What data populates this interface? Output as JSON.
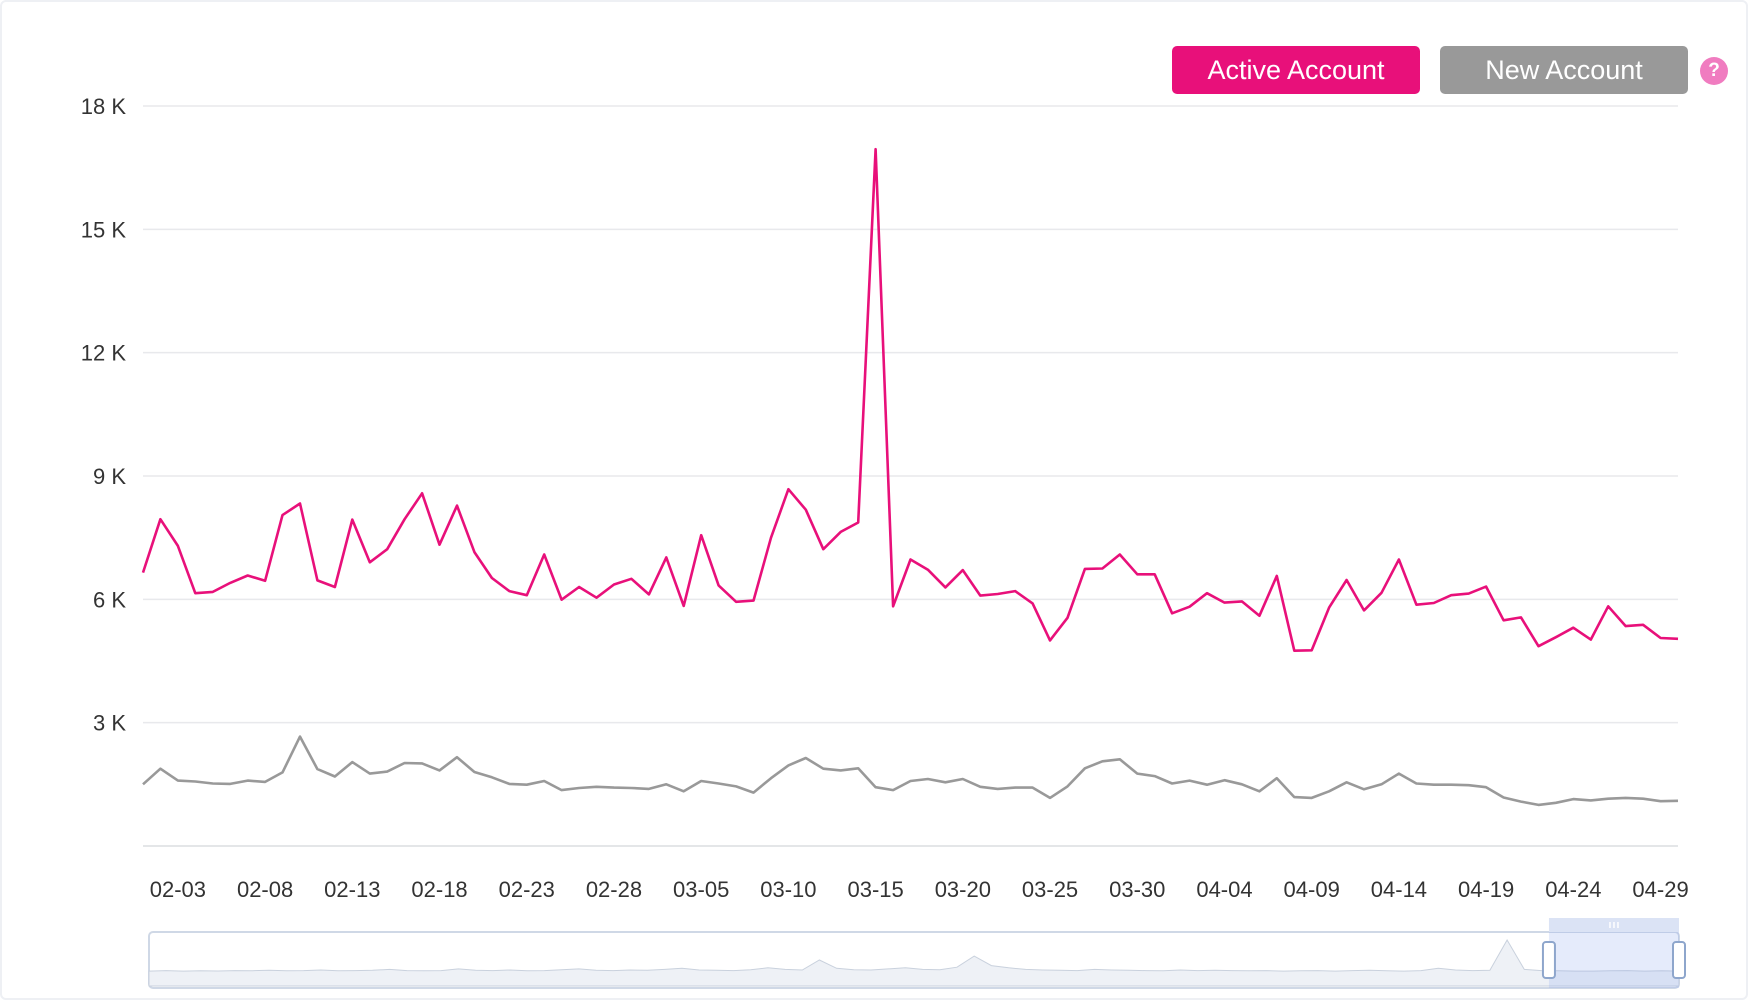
{
  "legend": {
    "items": [
      {
        "label": "Active Account",
        "color": "#e8107a"
      },
      {
        "label": "New Account",
        "color": "#999999"
      }
    ],
    "help_glyph": "?",
    "help_color": "#f07cc0"
  },
  "chart_data": {
    "type": "line",
    "x": [
      "02-01",
      "02-02",
      "02-03",
      "02-04",
      "02-05",
      "02-06",
      "02-07",
      "02-08",
      "02-09",
      "02-10",
      "02-11",
      "02-12",
      "02-13",
      "02-14",
      "02-15",
      "02-16",
      "02-17",
      "02-18",
      "02-19",
      "02-20",
      "02-21",
      "02-22",
      "02-23",
      "02-24",
      "02-25",
      "02-26",
      "02-27",
      "02-28",
      "03-01",
      "03-02",
      "03-03",
      "03-04",
      "03-05",
      "03-06",
      "03-07",
      "03-08",
      "03-09",
      "03-10",
      "03-11",
      "03-12",
      "03-13",
      "03-14",
      "03-15",
      "03-16",
      "03-17",
      "03-18",
      "03-19",
      "03-20",
      "03-21",
      "03-22",
      "03-23",
      "03-24",
      "03-25",
      "03-26",
      "03-27",
      "03-28",
      "03-29",
      "03-30",
      "03-31",
      "04-01",
      "04-02",
      "04-03",
      "04-04",
      "04-05",
      "04-06",
      "04-07",
      "04-08",
      "04-09",
      "04-10",
      "04-11",
      "04-12",
      "04-13",
      "04-14",
      "04-15",
      "04-16",
      "04-17",
      "04-18",
      "04-19",
      "04-20",
      "04-21",
      "04-22",
      "04-23",
      "04-24",
      "04-25",
      "04-26",
      "04-27",
      "04-28",
      "04-29",
      "04-30"
    ],
    "x_tick_labels": [
      "02-03",
      "02-08",
      "02-13",
      "02-18",
      "02-23",
      "02-28",
      "03-05",
      "03-10",
      "03-15",
      "03-20",
      "03-25",
      "03-30",
      "04-04",
      "04-09",
      "04-14",
      "04-19",
      "04-24",
      "04-29"
    ],
    "y_tick_labels": [
      "3 K",
      "6 K",
      "9 K",
      "12 K",
      "15 K",
      "18 K"
    ],
    "y_ticks": [
      0,
      3000,
      6000,
      9000,
      12000,
      15000,
      18000
    ],
    "ylim": [
      0,
      18000
    ],
    "grid": true,
    "legend_position": "top-right",
    "series": [
      {
        "name": "Active Account",
        "color": "#e8107a",
        "values": [
          6650,
          7950,
          7300,
          6150,
          6180,
          6400,
          6580,
          6450,
          8050,
          8330,
          6460,
          6300,
          7940,
          6900,
          7220,
          7950,
          8580,
          7330,
          8280,
          7150,
          6520,
          6200,
          6100,
          7090,
          5990,
          6300,
          6040,
          6360,
          6500,
          6120,
          7020,
          5840,
          7560,
          6340,
          5940,
          5970,
          7500,
          8680,
          8180,
          7220,
          7640,
          7870,
          16950,
          5830,
          6970,
          6720,
          6290,
          6710,
          6090,
          6130,
          6200,
          5900,
          5000,
          5550,
          6740,
          6750,
          7090,
          6610,
          6610,
          5660,
          5820,
          6150,
          5920,
          5950,
          5600,
          6570,
          4750,
          4760,
          5800,
          6470,
          5730,
          6160,
          6970,
          5870,
          5910,
          6100,
          6140,
          6310,
          5490,
          5560,
          4860,
          5080,
          5310,
          5020,
          5830,
          5350,
          5380,
          5060,
          5040
        ]
      },
      {
        "name": "New Account",
        "color": "#999999",
        "values": [
          1500,
          1880,
          1590,
          1570,
          1520,
          1510,
          1590,
          1560,
          1790,
          2660,
          1870,
          1690,
          2040,
          1760,
          1810,
          2020,
          2010,
          1840,
          2160,
          1800,
          1670,
          1510,
          1490,
          1580,
          1360,
          1410,
          1440,
          1420,
          1410,
          1390,
          1500,
          1330,
          1580,
          1520,
          1450,
          1300,
          1650,
          1960,
          2140,
          1880,
          1840,
          1890,
          1430,
          1360,
          1580,
          1630,
          1550,
          1630,
          1440,
          1390,
          1420,
          1420,
          1170,
          1450,
          1890,
          2060,
          2110,
          1760,
          1700,
          1520,
          1590,
          1490,
          1600,
          1500,
          1330,
          1650,
          1190,
          1170,
          1330,
          1550,
          1380,
          1500,
          1760,
          1520,
          1490,
          1490,
          1480,
          1430,
          1180,
          1080,
          1000,
          1050,
          1140,
          1110,
          1150,
          1170,
          1150,
          1090,
          1100
        ]
      }
    ],
    "mini_series": [
      1600,
      1700,
      1600,
      1650,
      1620,
      1700,
      1680,
      1750,
      1650,
      1700,
      1800,
      1650,
      1700,
      1750,
      1900,
      1700,
      1650,
      1700,
      2000,
      1750,
      1700,
      1800,
      1650,
      1700,
      1850,
      2000,
      1750,
      1700,
      1800,
      1750,
      1900,
      2100,
      1800,
      1750,
      1700,
      1850,
      2200,
      1900,
      1800,
      3600,
      2100,
      1850,
      1800,
      2000,
      2200,
      1900,
      1850,
      2300,
      4300,
      2600,
      2200,
      1900,
      1800,
      1750,
      1700,
      1900,
      1800,
      1750,
      1700,
      1650,
      1800,
      1700,
      1750,
      1700,
      1650,
      1700,
      1600,
      1650,
      1700,
      1600,
      1700,
      1750,
      1650,
      1600,
      1700,
      2100,
      1800,
      1700,
      1750,
      7200,
      1900,
      1700,
      1650,
      1600,
      1600,
      1650,
      1700,
      1600,
      1650,
      1600
    ],
    "zoom_range": [
      0.915,
      1.0
    ]
  }
}
